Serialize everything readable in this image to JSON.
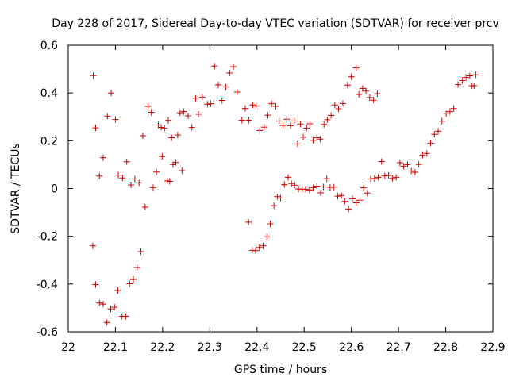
{
  "chart_data": {
    "type": "scatter",
    "title": "Day 228 of 2017, Sidereal Day-to-day VTEC variation (SDTVAR) for receiver prcv",
    "xlabel": "GPS time / hours",
    "ylabel": "SDTVAR / TECUs",
    "xlim": [
      22,
      22.9
    ],
    "ylim": [
      -0.6,
      0.6
    ],
    "xticks": [
      "22",
      "22.1",
      "22.2",
      "22.3",
      "22.4",
      "22.5",
      "22.6",
      "22.7",
      "22.8",
      "22.9"
    ],
    "yticks": [
      "0.6",
      "0.4",
      "0.2",
      "0",
      "-0.2",
      "-0.4",
      "-0.6"
    ],
    "grid": false,
    "legend": "none",
    "marker": "plus",
    "color": "#cc0000",
    "series": [
      {
        "name": "upper-branch",
        "points": [
          [
            22.053,
            0.473
          ],
          [
            22.058,
            0.254
          ],
          [
            22.066,
            0.052
          ],
          [
            22.074,
            0.129
          ],
          [
            22.083,
            0.303
          ],
          [
            22.091,
            0.4
          ],
          [
            22.1,
            0.289
          ],
          [
            22.106,
            0.056
          ],
          [
            22.115,
            0.044
          ],
          [
            22.124,
            0.112
          ],
          [
            22.133,
            0.015
          ],
          [
            22.141,
            0.04
          ],
          [
            22.15,
            0.024
          ],
          [
            22.158,
            0.221
          ],
          [
            22.163,
            -0.078
          ],
          [
            22.169,
            0.344
          ],
          [
            22.176,
            0.319
          ],
          [
            22.18,
            0.004
          ],
          [
            22.187,
            0.069
          ],
          [
            22.191,
            0.266
          ],
          [
            22.197,
            0.256
          ],
          [
            22.199,
            0.134
          ],
          [
            22.204,
            0.252
          ],
          [
            22.21,
            0.032
          ],
          [
            22.212,
            0.285
          ],
          [
            22.215,
            0.03
          ],
          [
            22.219,
            0.213
          ],
          [
            22.222,
            0.1
          ],
          [
            22.228,
            0.109
          ],
          [
            22.232,
            0.224
          ],
          [
            22.237,
            0.317
          ],
          [
            22.241,
            0.075
          ],
          [
            22.245,
            0.322
          ],
          [
            22.254,
            0.304
          ],
          [
            22.262,
            0.256
          ],
          [
            22.27,
            0.378
          ],
          [
            22.276,
            0.311
          ],
          [
            22.284,
            0.383
          ],
          [
            22.295,
            0.353
          ],
          [
            22.302,
            0.355
          ],
          [
            22.31,
            0.513
          ],
          [
            22.318,
            0.434
          ],
          [
            22.326,
            0.369
          ],
          [
            22.334,
            0.425
          ],
          [
            22.342,
            0.484
          ],
          [
            22.35,
            0.51
          ],
          [
            22.358,
            0.404
          ],
          [
            22.368,
            0.286
          ],
          [
            22.375,
            0.335
          ],
          [
            22.383,
            0.286
          ],
          [
            22.391,
            0.35
          ],
          [
            22.398,
            0.345
          ],
          [
            22.406,
            0.243
          ],
          [
            22.415,
            0.257
          ],
          [
            22.423,
            0.307
          ],
          [
            22.431,
            0.355
          ],
          [
            22.44,
            0.344
          ],
          [
            22.447,
            0.283
          ],
          [
            22.455,
            0.264
          ],
          [
            22.463,
            0.29
          ],
          [
            22.471,
            0.263
          ],
          [
            22.479,
            0.283
          ],
          [
            22.486,
            0.186
          ],
          [
            22.492,
            0.27
          ],
          [
            22.498,
            0.215
          ],
          [
            22.505,
            0.253
          ],
          [
            22.512,
            0.271
          ],
          [
            22.519,
            0.202
          ],
          [
            22.527,
            0.213
          ],
          [
            22.534,
            0.207
          ],
          [
            22.542,
            0.268
          ],
          [
            22.549,
            0.288
          ],
          [
            22.557,
            0.306
          ],
          [
            22.565,
            0.35
          ],
          [
            22.573,
            0.334
          ],
          [
            22.582,
            0.356
          ],
          [
            22.592,
            0.433
          ],
          [
            22.6,
            0.468
          ],
          [
            22.61,
            0.505
          ],
          [
            22.616,
            0.394
          ],
          [
            22.624,
            0.419
          ],
          [
            22.631,
            0.408
          ],
          [
            22.639,
            0.381
          ],
          [
            22.647,
            0.37
          ],
          [
            22.655,
            0.397
          ]
        ]
      },
      {
        "name": "lower-branch",
        "points": [
          [
            22.052,
            -0.24
          ],
          [
            22.058,
            -0.402
          ],
          [
            22.066,
            -0.479
          ],
          [
            22.074,
            -0.484
          ],
          [
            22.082,
            -0.561
          ],
          [
            22.09,
            -0.504
          ],
          [
            22.098,
            -0.497
          ],
          [
            22.105,
            -0.427
          ],
          [
            22.114,
            -0.535
          ],
          [
            22.122,
            -0.535
          ],
          [
            22.13,
            -0.399
          ],
          [
            22.138,
            -0.381
          ],
          [
            22.146,
            -0.331
          ],
          [
            22.154,
            -0.264
          ],
          [
            22.382,
            -0.141
          ],
          [
            22.39,
            -0.259
          ],
          [
            22.397,
            -0.26
          ],
          [
            22.405,
            -0.247
          ],
          [
            22.413,
            -0.24
          ],
          [
            22.421,
            -0.202
          ],
          [
            22.428,
            -0.148
          ],
          [
            22.436,
            -0.072
          ],
          [
            22.443,
            -0.034
          ],
          [
            22.45,
            -0.04
          ],
          [
            22.458,
            0.016
          ],
          [
            22.466,
            0.047
          ],
          [
            22.473,
            0.021
          ],
          [
            22.48,
            0.014
          ],
          [
            22.488,
            -0.002
          ],
          [
            22.496,
            -0.003
          ],
          [
            22.503,
            -0.003
          ],
          [
            22.511,
            -0.006
          ],
          [
            22.519,
            0.003
          ],
          [
            22.527,
            0.01
          ],
          [
            22.535,
            -0.018
          ],
          [
            22.541,
            0.007
          ],
          [
            22.548,
            0.041
          ],
          [
            22.555,
            0.005
          ],
          [
            22.563,
            0.006
          ],
          [
            22.571,
            -0.032
          ],
          [
            22.579,
            -0.029
          ],
          [
            22.586,
            -0.054
          ],
          [
            22.594,
            -0.086
          ],
          [
            22.602,
            -0.043
          ],
          [
            22.61,
            -0.06
          ],
          [
            22.618,
            -0.049
          ],
          [
            22.626,
            0.003
          ],
          [
            22.634,
            -0.019
          ],
          [
            22.641,
            0.04
          ],
          [
            22.649,
            0.042
          ],
          [
            22.657,
            0.047
          ],
          [
            22.664,
            0.113
          ],
          [
            22.671,
            0.053
          ],
          [
            22.679,
            0.055
          ],
          [
            22.687,
            0.042
          ],
          [
            22.695,
            0.047
          ],
          [
            22.703,
            0.108
          ],
          [
            22.711,
            0.093
          ],
          [
            22.719,
            0.1
          ],
          [
            22.727,
            0.073
          ],
          [
            22.735,
            0.068
          ],
          [
            22.743,
            0.101
          ],
          [
            22.751,
            0.14
          ],
          [
            22.76,
            0.147
          ],
          [
            22.768,
            0.19
          ],
          [
            22.776,
            0.227
          ],
          [
            22.784,
            0.24
          ],
          [
            22.792,
            0.282
          ],
          [
            22.801,
            0.313
          ],
          [
            22.809,
            0.322
          ],
          [
            22.817,
            0.335
          ],
          [
            22.826,
            0.435
          ],
          [
            22.835,
            0.452
          ],
          [
            22.843,
            0.465
          ],
          [
            22.851,
            0.472
          ],
          [
            22.855,
            0.43
          ],
          [
            22.86,
            0.431
          ],
          [
            22.864,
            0.476
          ]
        ]
      }
    ]
  }
}
